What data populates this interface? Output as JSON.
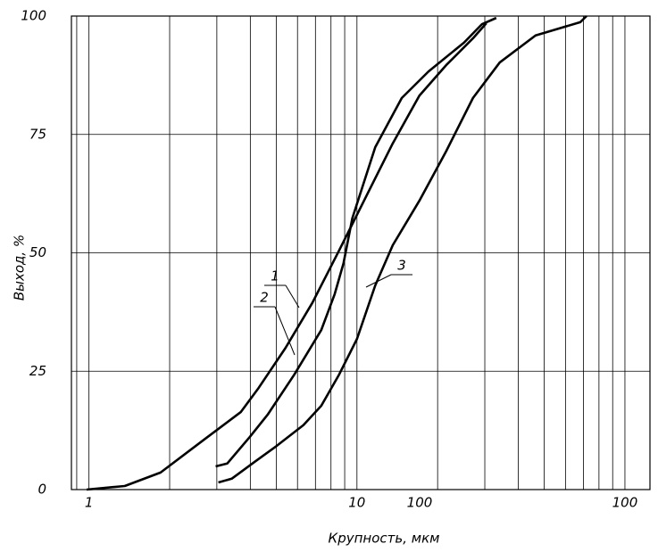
{
  "chart_data": {
    "type": "line",
    "x_label": "Крупность, мкм",
    "y_label": "Выход, %",
    "log_x": true,
    "grid": true,
    "color": "#000000",
    "xlim": [
      0.86,
      124
    ],
    "xticks": [
      1,
      10,
      100
    ],
    "x_extra_label": "100",
    "ylim": [
      0,
      100
    ],
    "yticks": [
      0,
      25,
      50,
      75,
      100
    ],
    "series": [
      {
        "name": "1",
        "color": "#000000",
        "x": [
          0.98,
          1.36,
          1.85,
          2.71,
          3.69,
          4.3,
          5.41,
          6.81,
          8.58,
          10.8,
          13.6,
          17.1,
          21.5,
          27.1,
          30.4
        ],
        "values": [
          0,
          0.75,
          3.6,
          10.7,
          16.4,
          21.5,
          29.9,
          39.4,
          50.5,
          61.8,
          73.1,
          83.2,
          89.6,
          95.3,
          98.5
        ]
      },
      {
        "name": "2",
        "color": "#000000",
        "x": [
          2.97,
          3.28,
          3.98,
          4.64,
          5.84,
          7.36,
          8.25,
          8.91,
          9.61,
          11.7,
          14.7,
          18.5,
          25.1,
          29.3,
          33.1
        ],
        "values": [
          4.9,
          5.5,
          11.1,
          15.8,
          24.3,
          33.7,
          41.2,
          47.8,
          57.3,
          72.3,
          82.7,
          88.3,
          94.4,
          98.3,
          99.6
        ]
      },
      {
        "name": "3",
        "color": "#000000",
        "x": [
          3.04,
          3.41,
          4.14,
          5.01,
          6.31,
          7.36,
          8.58,
          10,
          11.7,
          13.6,
          17.1,
          21.5,
          27.1,
          34.1,
          46.4,
          68.1,
          71.9
        ],
        "values": [
          1.5,
          2.3,
          5.8,
          9.2,
          13.6,
          17.7,
          24.3,
          31.8,
          43.1,
          51.6,
          61,
          71.4,
          82.7,
          90.2,
          95.9,
          98.7,
          100
        ]
      }
    ]
  }
}
